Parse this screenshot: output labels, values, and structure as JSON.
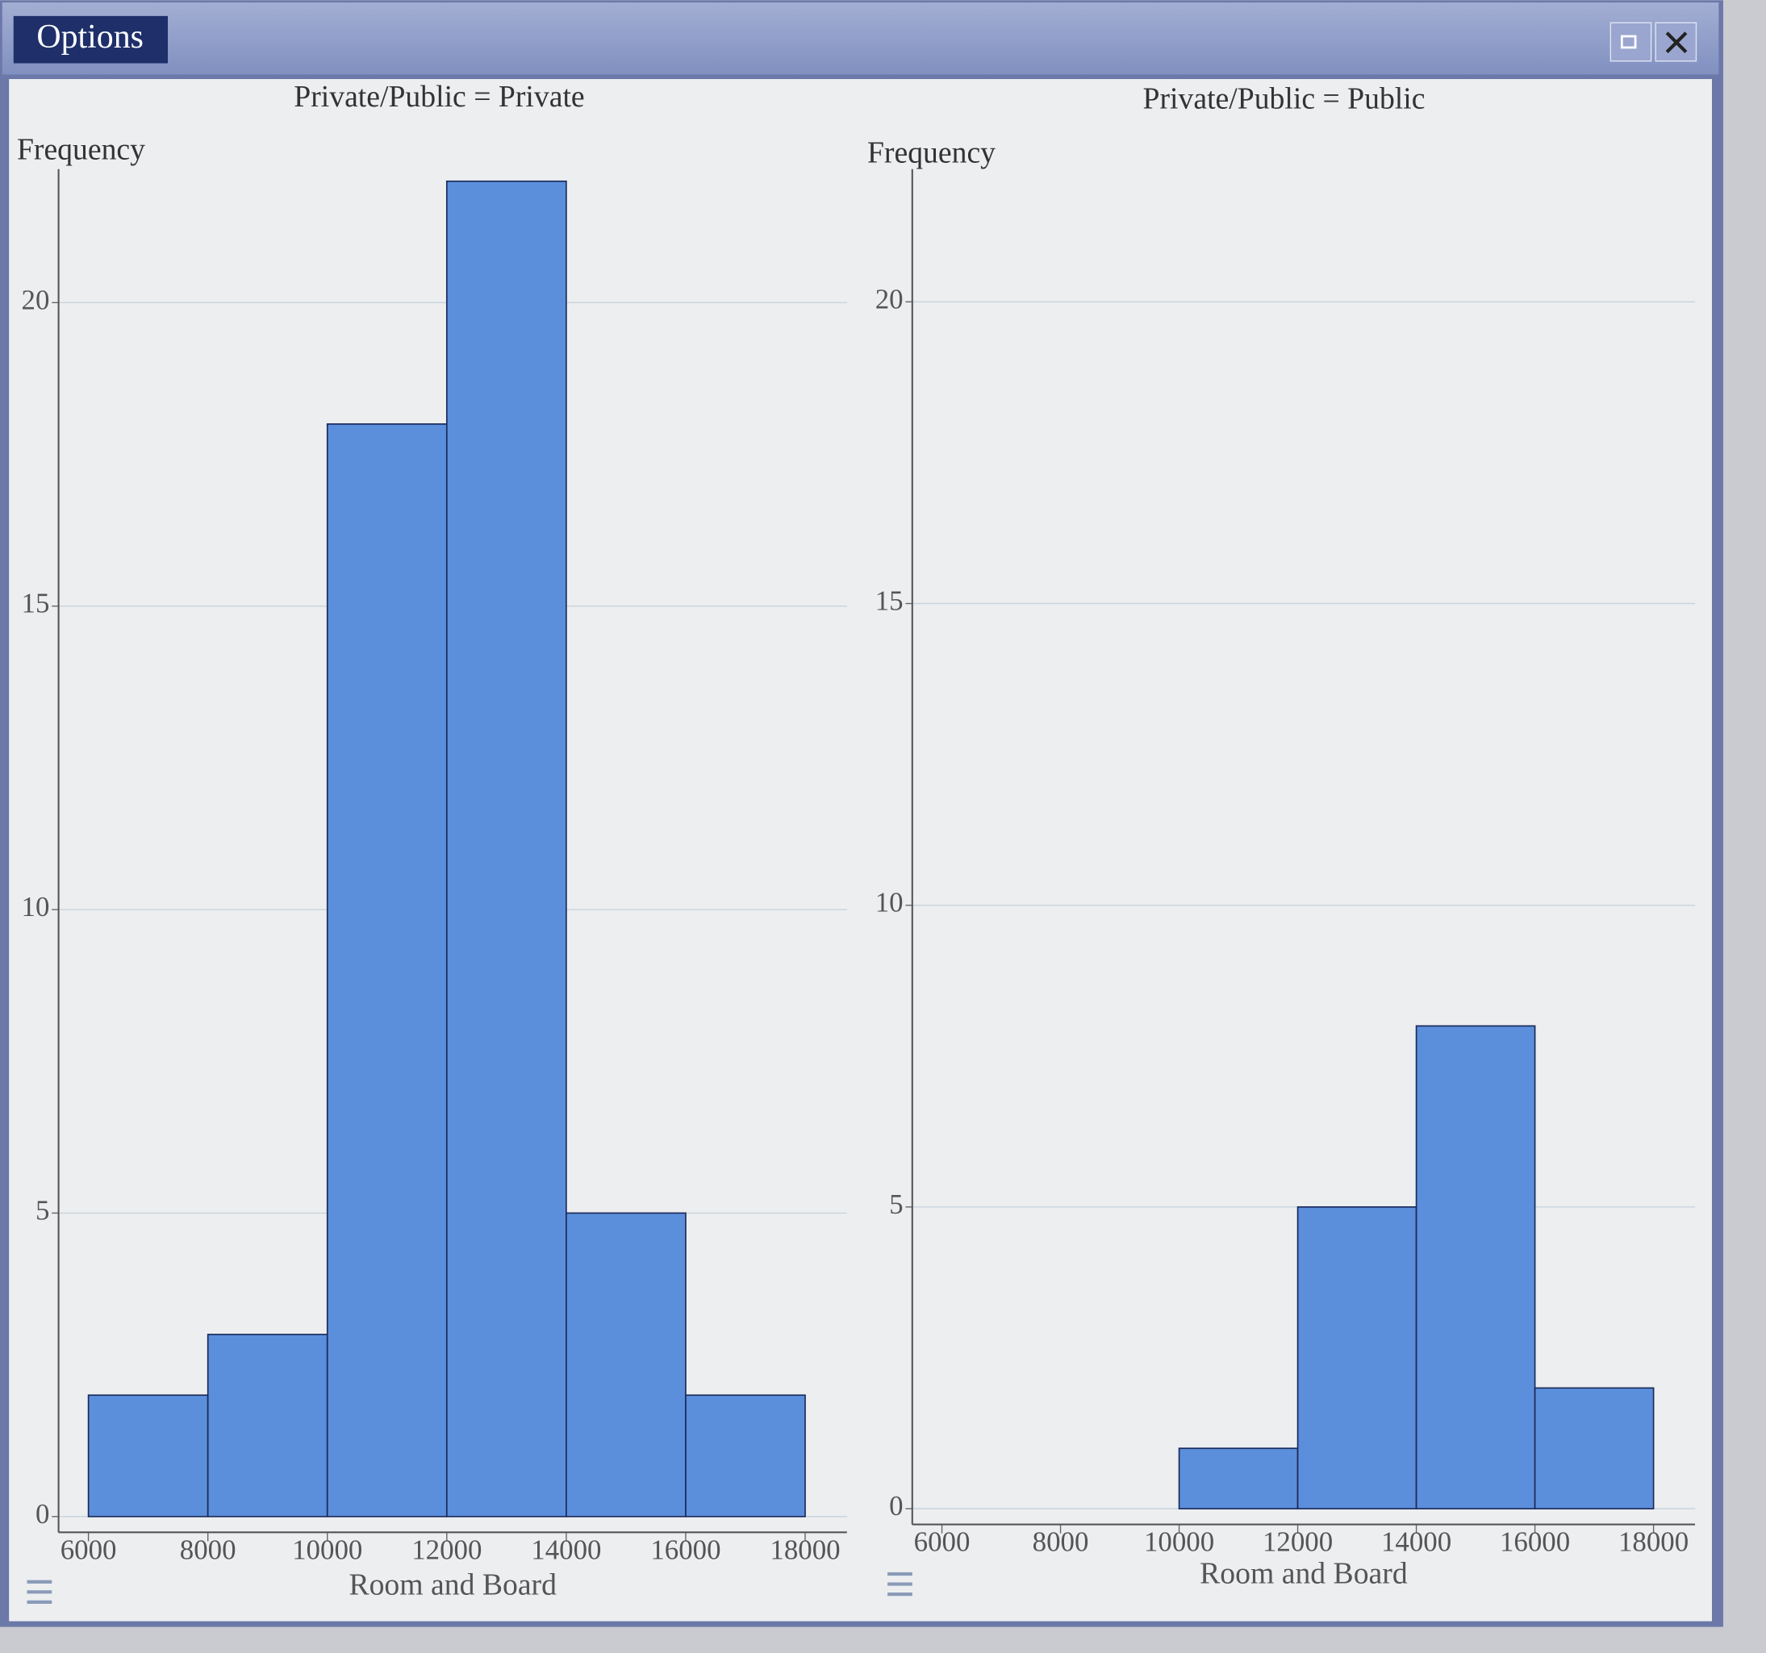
{
  "window": {
    "button": "Options"
  },
  "chart_data": [
    {
      "type": "histogram",
      "title": "Private/Public = Private",
      "ylabel": "Frequency",
      "xlabel": "Room and Board",
      "bins": [
        6000,
        8000,
        10000,
        12000,
        14000,
        16000,
        18000
      ],
      "counts": [
        2,
        3,
        18,
        22,
        5,
        2
      ],
      "color": "#5b8fdc",
      "xlim": [
        5500,
        18700
      ],
      "ylim": [
        0,
        22.2
      ],
      "xticks": [
        6000,
        8000,
        10000,
        12000,
        14000,
        16000,
        18000
      ],
      "yticks": [
        0,
        5,
        10,
        15,
        20
      ],
      "grid": true
    },
    {
      "type": "histogram",
      "title": "Private/Public = Public",
      "ylabel": "Frequency",
      "xlabel": "Room and Board",
      "bins": [
        6000,
        8000,
        10000,
        12000,
        14000,
        16000,
        18000
      ],
      "counts": [
        0,
        0,
        1,
        5,
        8,
        2
      ],
      "color": "#5b8fdc",
      "xlim": [
        5500,
        18700
      ],
      "ylim": [
        0,
        22.2
      ],
      "xticks": [
        6000,
        8000,
        10000,
        12000,
        14000,
        16000,
        18000
      ],
      "yticks": [
        0,
        5,
        10,
        15,
        20
      ],
      "grid": true
    }
  ]
}
